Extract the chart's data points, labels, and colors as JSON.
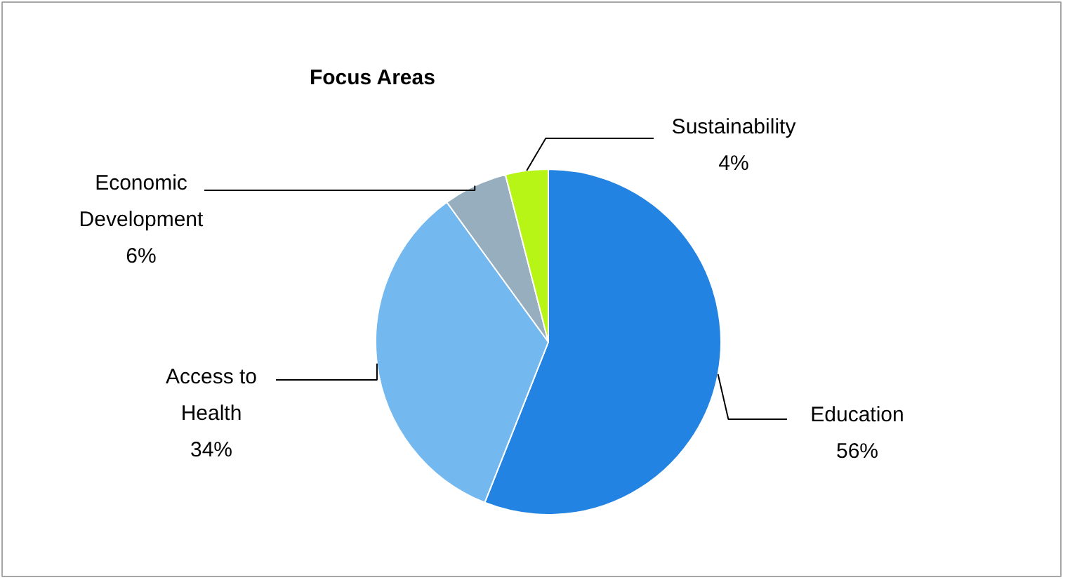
{
  "chart_data": {
    "type": "pie",
    "title": "Focus Areas",
    "categories": [
      "Education",
      "Access to Health",
      "Economic Development",
      "Sustainability"
    ],
    "values": [
      56,
      34,
      6,
      4
    ],
    "colors": [
      "#2383e2",
      "#74b8f0",
      "#97aebf",
      "#b7f516"
    ],
    "value_labels": [
      "56%",
      "34%",
      "6%",
      "4%"
    ]
  }
}
